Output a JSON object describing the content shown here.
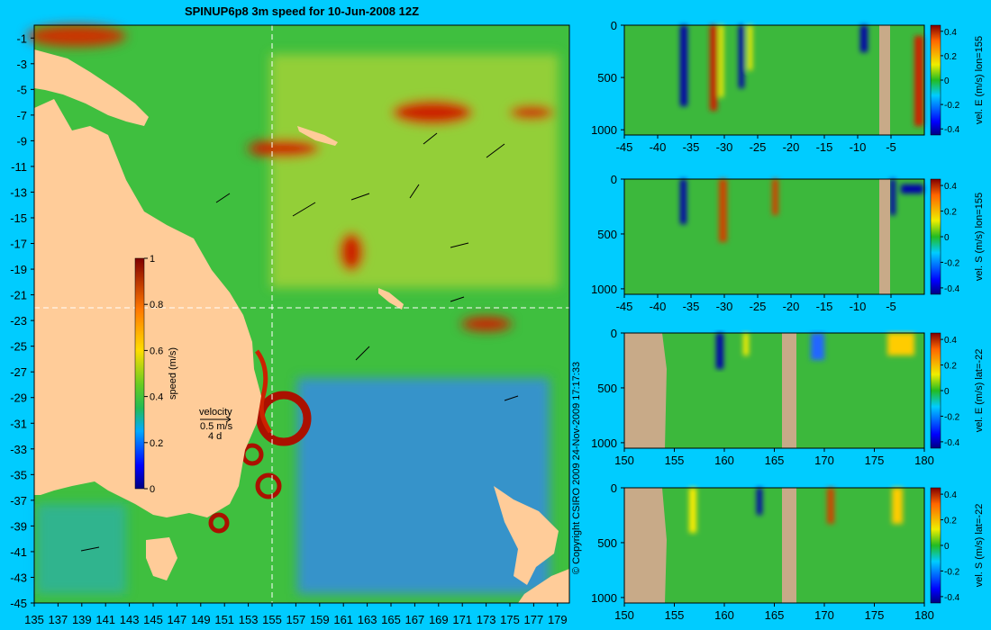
{
  "map": {
    "title": "SPINUP6p8 3m speed for 10-Jun-2008 12Z",
    "x_ticks": [
      "135",
      "137",
      "139",
      "141",
      "143",
      "145",
      "147",
      "149",
      "151",
      "153",
      "155",
      "157",
      "159",
      "161",
      "163",
      "165",
      "167",
      "169",
      "171",
      "173",
      "175",
      "177",
      "179"
    ],
    "y_ticks": [
      "-1",
      "-3",
      "-5",
      "-7",
      "-9",
      "-11",
      "-13",
      "-15",
      "-17",
      "-19",
      "-21",
      "-23",
      "-25",
      "-27",
      "-29",
      "-31",
      "-33",
      "-35",
      "-37",
      "-39",
      "-41",
      "-43",
      "-45"
    ],
    "xlim": [
      135,
      180
    ],
    "ylim": [
      -45,
      0
    ],
    "crosshair": {
      "lon": 155,
      "lat": -22
    },
    "colorbar": {
      "label": "speed (m/s)",
      "ticks": [
        "1",
        "0.8",
        "0.6",
        "0.4",
        "0.2",
        "0"
      ],
      "range": [
        0,
        1
      ]
    },
    "velocity_legend": {
      "title": "velocity",
      "speed": "0.5 m/s",
      "duration": "4 d"
    }
  },
  "copyright": "© Copyright CSIRO 2009   24-Nov-2009 17:17:33",
  "colors": {
    "background": "#00ccff",
    "land": "#ffcc99",
    "section_land": "#c8aa88"
  },
  "chart_data": [
    {
      "type": "heatmap",
      "variable": "vel. E (m/s) lon=155",
      "x_ticks": [
        "-45",
        "-40",
        "-35",
        "-30",
        "-25",
        "-20",
        "-15",
        "-10",
        "-5"
      ],
      "y_ticks": [
        "0",
        "500",
        "1000"
      ],
      "xlim": [
        -45,
        0
      ],
      "ylim": [
        1050,
        0
      ],
      "colorbar_ticks": [
        "0.4",
        "0.2",
        "0",
        "-0.2",
        "-0.4"
      ],
      "crange": [
        -0.45,
        0.45
      ]
    },
    {
      "type": "heatmap",
      "variable": "vel. S (m/s) lon=155",
      "x_ticks": [
        "-45",
        "-40",
        "-35",
        "-30",
        "-25",
        "-20",
        "-15",
        "-10",
        "-5"
      ],
      "y_ticks": [
        "0",
        "500",
        "1000"
      ],
      "xlim": [
        -45,
        0
      ],
      "ylim": [
        1050,
        0
      ],
      "colorbar_ticks": [
        "0.4",
        "0.2",
        "0",
        "-0.2",
        "-0.4"
      ],
      "crange": [
        -0.45,
        0.45
      ]
    },
    {
      "type": "heatmap",
      "variable": "vel. E (m/s) lat=-22",
      "x_ticks": [
        "150",
        "155",
        "160",
        "165",
        "170",
        "175",
        "180"
      ],
      "y_ticks": [
        "0",
        "500",
        "1000"
      ],
      "xlim": [
        150,
        180
      ],
      "ylim": [
        1050,
        0
      ],
      "colorbar_ticks": [
        "0.4",
        "0.2",
        "0",
        "-0.2",
        "-0.4"
      ],
      "crange": [
        -0.45,
        0.45
      ]
    },
    {
      "type": "heatmap",
      "variable": "vel. S (m/s) lat=-22",
      "x_ticks": [
        "150",
        "155",
        "160",
        "165",
        "170",
        "175",
        "180"
      ],
      "y_ticks": [
        "0",
        "500",
        "1000"
      ],
      "xlim": [
        150,
        180
      ],
      "ylim": [
        1050,
        0
      ],
      "colorbar_ticks": [
        "0.4",
        "0.2",
        "0",
        "-0.2",
        "-0.4"
      ],
      "crange": [
        -0.45,
        0.45
      ]
    }
  ]
}
